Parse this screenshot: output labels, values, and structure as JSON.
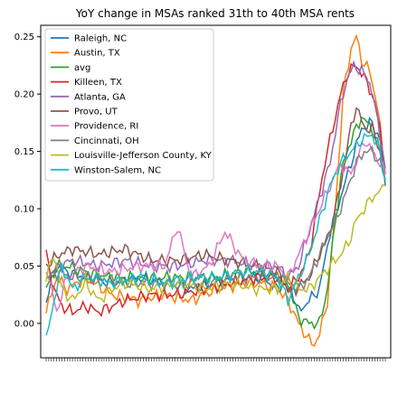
{
  "chart_data": {
    "type": "line",
    "title": "YoY change in MSAs ranked 31th to 40th MSA rents",
    "xlabel": "",
    "ylabel": "",
    "ylim": [
      -0.03,
      0.26
    ],
    "yticks": [
      0.0,
      0.05,
      0.1,
      0.15,
      0.2,
      0.25
    ],
    "ytick_labels": [
      "0.00",
      "0.05",
      "0.10",
      "0.15",
      "0.20",
      "0.25"
    ],
    "x_tick_count": 130,
    "grid": false,
    "legend_position": "top-left",
    "series": [
      {
        "name": "Raleigh, NC",
        "color": "#1f77b4",
        "points": [
          [
            0,
            0.02
          ],
          [
            4,
            0.05
          ],
          [
            8,
            0.045
          ],
          [
            15,
            0.04
          ],
          [
            25,
            0.035
          ],
          [
            35,
            0.04
          ],
          [
            45,
            0.035
          ],
          [
            55,
            0.03
          ],
          [
            65,
            0.035
          ],
          [
            75,
            0.04
          ],
          [
            82,
            0.04
          ],
          [
            88,
            0.03
          ],
          [
            92,
            0.04
          ],
          [
            96,
            0.01
          ],
          [
            100,
            0.02
          ],
          [
            104,
            0.03
          ],
          [
            108,
            0.08
          ],
          [
            112,
            0.11
          ],
          [
            116,
            0.14
          ],
          [
            120,
            0.17
          ],
          [
            124,
            0.175
          ],
          [
            127,
            0.16
          ],
          [
            129,
            0.12
          ]
        ]
      },
      {
        "name": "Austin, TX",
        "color": "#ff7f0e",
        "points": [
          [
            0,
            0.01
          ],
          [
            4,
            0.04
          ],
          [
            8,
            0.03
          ],
          [
            15,
            0.04
          ],
          [
            25,
            0.025
          ],
          [
            35,
            0.02
          ],
          [
            45,
            0.025
          ],
          [
            55,
            0.02
          ],
          [
            65,
            0.03
          ],
          [
            75,
            0.035
          ],
          [
            82,
            0.035
          ],
          [
            88,
            0.03
          ],
          [
            92,
            0.02
          ],
          [
            96,
            0.0
          ],
          [
            100,
            -0.015
          ],
          [
            102,
            -0.018
          ],
          [
            104,
            -0.01
          ],
          [
            107,
            0.02
          ],
          [
            110,
            0.1
          ],
          [
            113,
            0.2
          ],
          [
            116,
            0.24
          ],
          [
            118,
            0.25
          ],
          [
            120,
            0.23
          ],
          [
            123,
            0.22
          ],
          [
            126,
            0.19
          ],
          [
            129,
            0.13
          ]
        ]
      },
      {
        "name": "avg",
        "color": "#2ca02c",
        "points": [
          [
            0,
            0.03
          ],
          [
            4,
            0.05
          ],
          [
            8,
            0.05
          ],
          [
            15,
            0.045
          ],
          [
            25,
            0.04
          ],
          [
            35,
            0.04
          ],
          [
            45,
            0.04
          ],
          [
            55,
            0.04
          ],
          [
            65,
            0.04
          ],
          [
            75,
            0.045
          ],
          [
            82,
            0.045
          ],
          [
            88,
            0.04
          ],
          [
            92,
            0.035
          ],
          [
            96,
            0.005
          ],
          [
            100,
            0.0
          ],
          [
            104,
            0.0
          ],
          [
            107,
            0.03
          ],
          [
            110,
            0.09
          ],
          [
            113,
            0.14
          ],
          [
            116,
            0.16
          ],
          [
            120,
            0.18
          ],
          [
            124,
            0.17
          ],
          [
            127,
            0.15
          ],
          [
            129,
            0.125
          ]
        ]
      },
      {
        "name": "Killeen, TX",
        "color": "#d62728",
        "points": [
          [
            0,
            0.06
          ],
          [
            3,
            0.03
          ],
          [
            6,
            0.015
          ],
          [
            10,
            0.01
          ],
          [
            15,
            0.015
          ],
          [
            20,
            0.01
          ],
          [
            25,
            0.015
          ],
          [
            30,
            0.02
          ],
          [
            40,
            0.025
          ],
          [
            50,
            0.025
          ],
          [
            60,
            0.03
          ],
          [
            70,
            0.035
          ],
          [
            80,
            0.04
          ],
          [
            88,
            0.04
          ],
          [
            92,
            0.03
          ],
          [
            96,
            0.04
          ],
          [
            100,
            0.06
          ],
          [
            103,
            0.1
          ],
          [
            106,
            0.14
          ],
          [
            109,
            0.17
          ],
          [
            112,
            0.2
          ],
          [
            115,
            0.22
          ],
          [
            118,
            0.225
          ],
          [
            121,
            0.215
          ],
          [
            124,
            0.2
          ],
          [
            127,
            0.17
          ],
          [
            129,
            0.13
          ]
        ]
      },
      {
        "name": "Atlanta, GA",
        "color": "#9467bd",
        "points": [
          [
            0,
            0.04
          ],
          [
            5,
            0.05
          ],
          [
            10,
            0.055
          ],
          [
            20,
            0.05
          ],
          [
            30,
            0.055
          ],
          [
            40,
            0.05
          ],
          [
            50,
            0.05
          ],
          [
            60,
            0.055
          ],
          [
            70,
            0.055
          ],
          [
            80,
            0.05
          ],
          [
            88,
            0.05
          ],
          [
            92,
            0.04
          ],
          [
            96,
            0.05
          ],
          [
            100,
            0.08
          ],
          [
            104,
            0.11
          ],
          [
            108,
            0.14
          ],
          [
            111,
            0.18
          ],
          [
            114,
            0.21
          ],
          [
            117,
            0.225
          ],
          [
            120,
            0.22
          ],
          [
            123,
            0.21
          ],
          [
            126,
            0.18
          ],
          [
            129,
            0.135
          ]
        ]
      },
      {
        "name": "Provo, UT",
        "color": "#8c564b",
        "points": [
          [
            0,
            0.05
          ],
          [
            5,
            0.06
          ],
          [
            10,
            0.065
          ],
          [
            20,
            0.06
          ],
          [
            30,
            0.065
          ],
          [
            40,
            0.055
          ],
          [
            50,
            0.055
          ],
          [
            60,
            0.06
          ],
          [
            70,
            0.055
          ],
          [
            80,
            0.05
          ],
          [
            88,
            0.045
          ],
          [
            92,
            0.03
          ],
          [
            95,
            0.03
          ],
          [
            100,
            0.04
          ],
          [
            104,
            0.06
          ],
          [
            108,
            0.08
          ],
          [
            112,
            0.12
          ],
          [
            115,
            0.16
          ],
          [
            118,
            0.19
          ],
          [
            121,
            0.17
          ],
          [
            124,
            0.17
          ],
          [
            127,
            0.15
          ],
          [
            129,
            0.13
          ]
        ]
      },
      {
        "name": "Providence, RI",
        "color": "#e377c2",
        "points": [
          [
            0,
            0.05
          ],
          [
            4,
            0.01
          ],
          [
            8,
            0.04
          ],
          [
            15,
            0.05
          ],
          [
            25,
            0.045
          ],
          [
            35,
            0.05
          ],
          [
            45,
            0.05
          ],
          [
            50,
            0.085
          ],
          [
            55,
            0.04
          ],
          [
            62,
            0.05
          ],
          [
            68,
            0.08
          ],
          [
            75,
            0.055
          ],
          [
            82,
            0.05
          ],
          [
            88,
            0.05
          ],
          [
            92,
            0.04
          ],
          [
            96,
            0.06
          ],
          [
            100,
            0.08
          ],
          [
            104,
            0.1
          ],
          [
            108,
            0.12
          ],
          [
            112,
            0.14
          ],
          [
            115,
            0.13
          ],
          [
            118,
            0.14
          ],
          [
            121,
            0.16
          ],
          [
            124,
            0.15
          ],
          [
            127,
            0.14
          ],
          [
            129,
            0.13
          ]
        ]
      },
      {
        "name": "Cincinnati, OH",
        "color": "#7f7f7f",
        "points": [
          [
            0,
            0.04
          ],
          [
            5,
            0.045
          ],
          [
            10,
            0.04
          ],
          [
            20,
            0.04
          ],
          [
            30,
            0.035
          ],
          [
            40,
            0.035
          ],
          [
            50,
            0.035
          ],
          [
            60,
            0.035
          ],
          [
            70,
            0.04
          ],
          [
            80,
            0.04
          ],
          [
            88,
            0.04
          ],
          [
            92,
            0.035
          ],
          [
            96,
            0.03
          ],
          [
            100,
            0.04
          ],
          [
            104,
            0.06
          ],
          [
            108,
            0.08
          ],
          [
            112,
            0.1
          ],
          [
            115,
            0.12
          ],
          [
            118,
            0.14
          ],
          [
            121,
            0.15
          ],
          [
            124,
            0.15
          ],
          [
            127,
            0.14
          ],
          [
            129,
            0.125
          ]
        ]
      },
      {
        "name": "Louisville-Jefferson County, KY",
        "color": "#bcbd22",
        "points": [
          [
            0,
            0.04
          ],
          [
            3,
            0.06
          ],
          [
            6,
            0.03
          ],
          [
            10,
            0.02
          ],
          [
            15,
            0.035
          ],
          [
            20,
            0.02
          ],
          [
            25,
            0.03
          ],
          [
            30,
            0.035
          ],
          [
            40,
            0.03
          ],
          [
            50,
            0.035
          ],
          [
            60,
            0.03
          ],
          [
            70,
            0.035
          ],
          [
            80,
            0.03
          ],
          [
            88,
            0.03
          ],
          [
            92,
            0.04
          ],
          [
            96,
            0.03
          ],
          [
            100,
            0.03
          ],
          [
            104,
            0.04
          ],
          [
            108,
            0.05
          ],
          [
            112,
            0.06
          ],
          [
            115,
            0.07
          ],
          [
            118,
            0.09
          ],
          [
            121,
            0.1
          ],
          [
            124,
            0.11
          ],
          [
            127,
            0.115
          ],
          [
            129,
            0.12
          ]
        ]
      },
      {
        "name": "Winston-Salem, NC",
        "color": "#17becf",
        "points": [
          [
            0,
            -0.015
          ],
          [
            3,
            0.02
          ],
          [
            6,
            0.05
          ],
          [
            10,
            0.03
          ],
          [
            15,
            0.04
          ],
          [
            25,
            0.035
          ],
          [
            35,
            0.04
          ],
          [
            45,
            0.035
          ],
          [
            55,
            0.04
          ],
          [
            65,
            0.04
          ],
          [
            75,
            0.045
          ],
          [
            82,
            0.045
          ],
          [
            88,
            0.04
          ],
          [
            92,
            0.02
          ],
          [
            96,
            0.04
          ],
          [
            100,
            0.06
          ],
          [
            104,
            0.09
          ],
          [
            108,
            0.12
          ],
          [
            112,
            0.14
          ],
          [
            116,
            0.15
          ],
          [
            120,
            0.16
          ],
          [
            124,
            0.165
          ],
          [
            127,
            0.15
          ],
          [
            129,
            0.125
          ]
        ]
      }
    ]
  }
}
